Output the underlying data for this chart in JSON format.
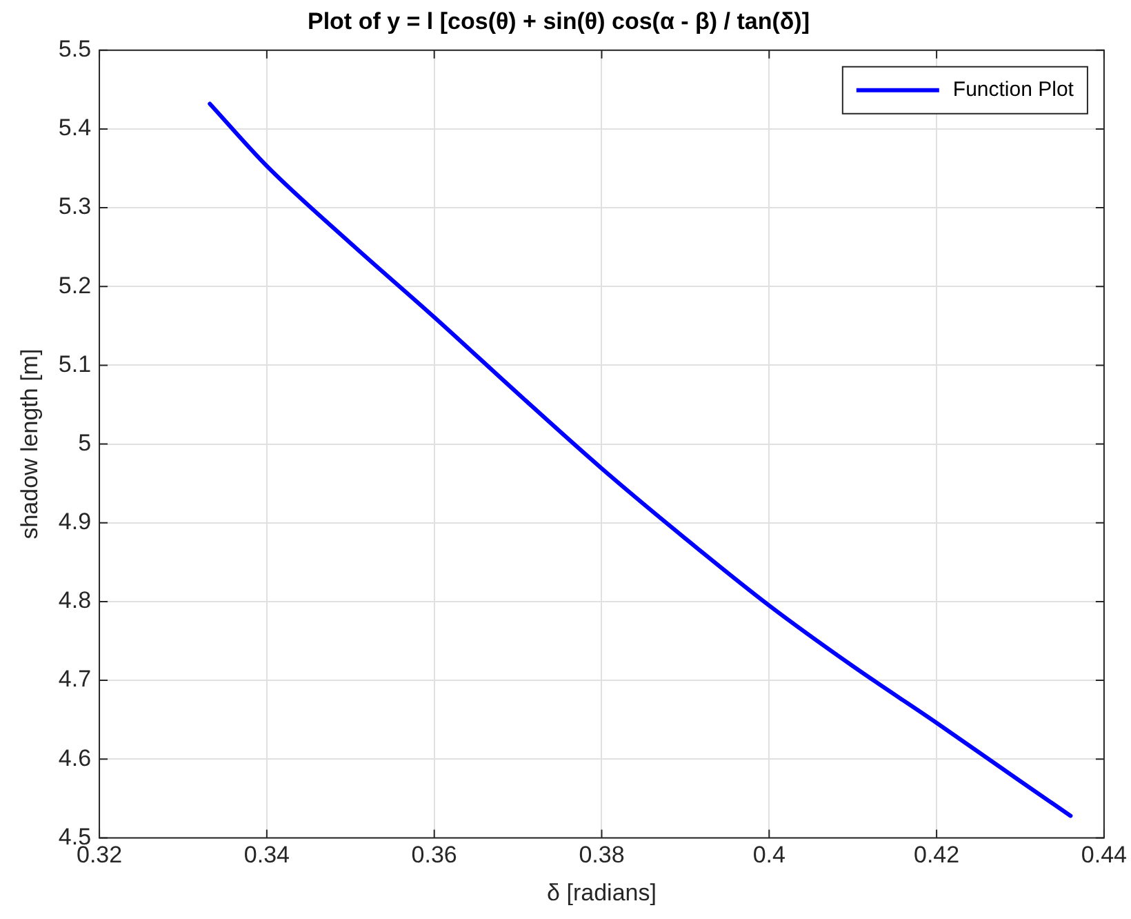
{
  "chart_data": {
    "type": "line",
    "title": "Plot of y = l [cos(θ) + sin(θ) cos(α - β) / tan(δ)]",
    "xlabel": "δ [radians]",
    "ylabel": "shadow length [m]",
    "x": [
      0.3332,
      0.34,
      0.35,
      0.36,
      0.37,
      0.38,
      0.39,
      0.4,
      0.41,
      0.42,
      0.43,
      0.436
    ],
    "series": [
      {
        "name": "Function Plot",
        "color": "#0000ff",
        "values": [
          5.432,
          5.353,
          5.255,
          5.161,
          5.064,
          4.969,
          4.88,
          4.795,
          4.718,
          4.646,
          4.572,
          4.528
        ]
      }
    ],
    "xlim": [
      0.32,
      0.44
    ],
    "xticks": [
      0.32,
      0.34,
      0.36,
      0.38,
      0.4,
      0.42,
      0.44
    ],
    "ylim": [
      4.5,
      5.5
    ],
    "yticks": [
      4.5,
      4.6,
      4.7,
      4.8,
      4.9,
      5,
      5.1,
      5.2,
      5.3,
      5.4,
      5.5
    ],
    "grid": true,
    "legend": "top right",
    "marker": "none",
    "line_style": "solid"
  }
}
